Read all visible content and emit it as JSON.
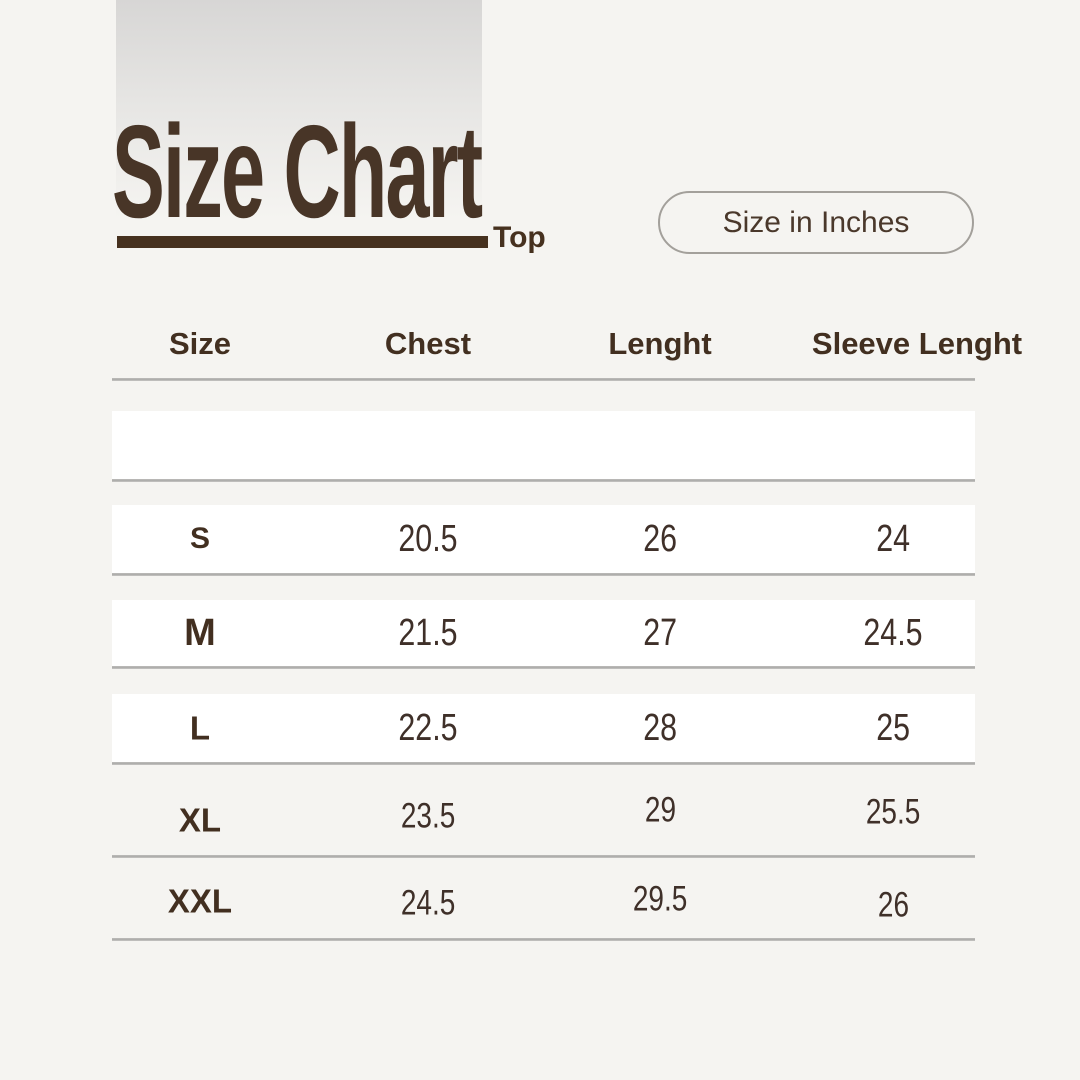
{
  "page": {
    "background_color": "#f5f4f1",
    "accent_color": "#46311f",
    "text_color": "#3f3029",
    "divider_color": "#adabaa",
    "row_background_color": "#ffffff"
  },
  "header": {
    "title": "Size Chart",
    "category": "Top",
    "badge": "Size in Inches"
  },
  "table": {
    "columns": [
      "Size",
      "Chest",
      "Lenght",
      "Sleeve Lenght"
    ],
    "rows": [
      {
        "size": "S",
        "chest": "20.5",
        "length": "26",
        "sleeve_length": "24"
      },
      {
        "size": "M",
        "chest": "21.5",
        "length": "27",
        "sleeve_length": "24.5"
      },
      {
        "size": "L",
        "chest": "22.5",
        "length": "28",
        "sleeve_length": "25"
      },
      {
        "size": "XL",
        "chest": "23.5",
        "length": "29",
        "sleeve_length": "25.5"
      },
      {
        "size": "XXL",
        "chest": "24.5",
        "length": "29.5",
        "sleeve_length": "26"
      }
    ]
  }
}
